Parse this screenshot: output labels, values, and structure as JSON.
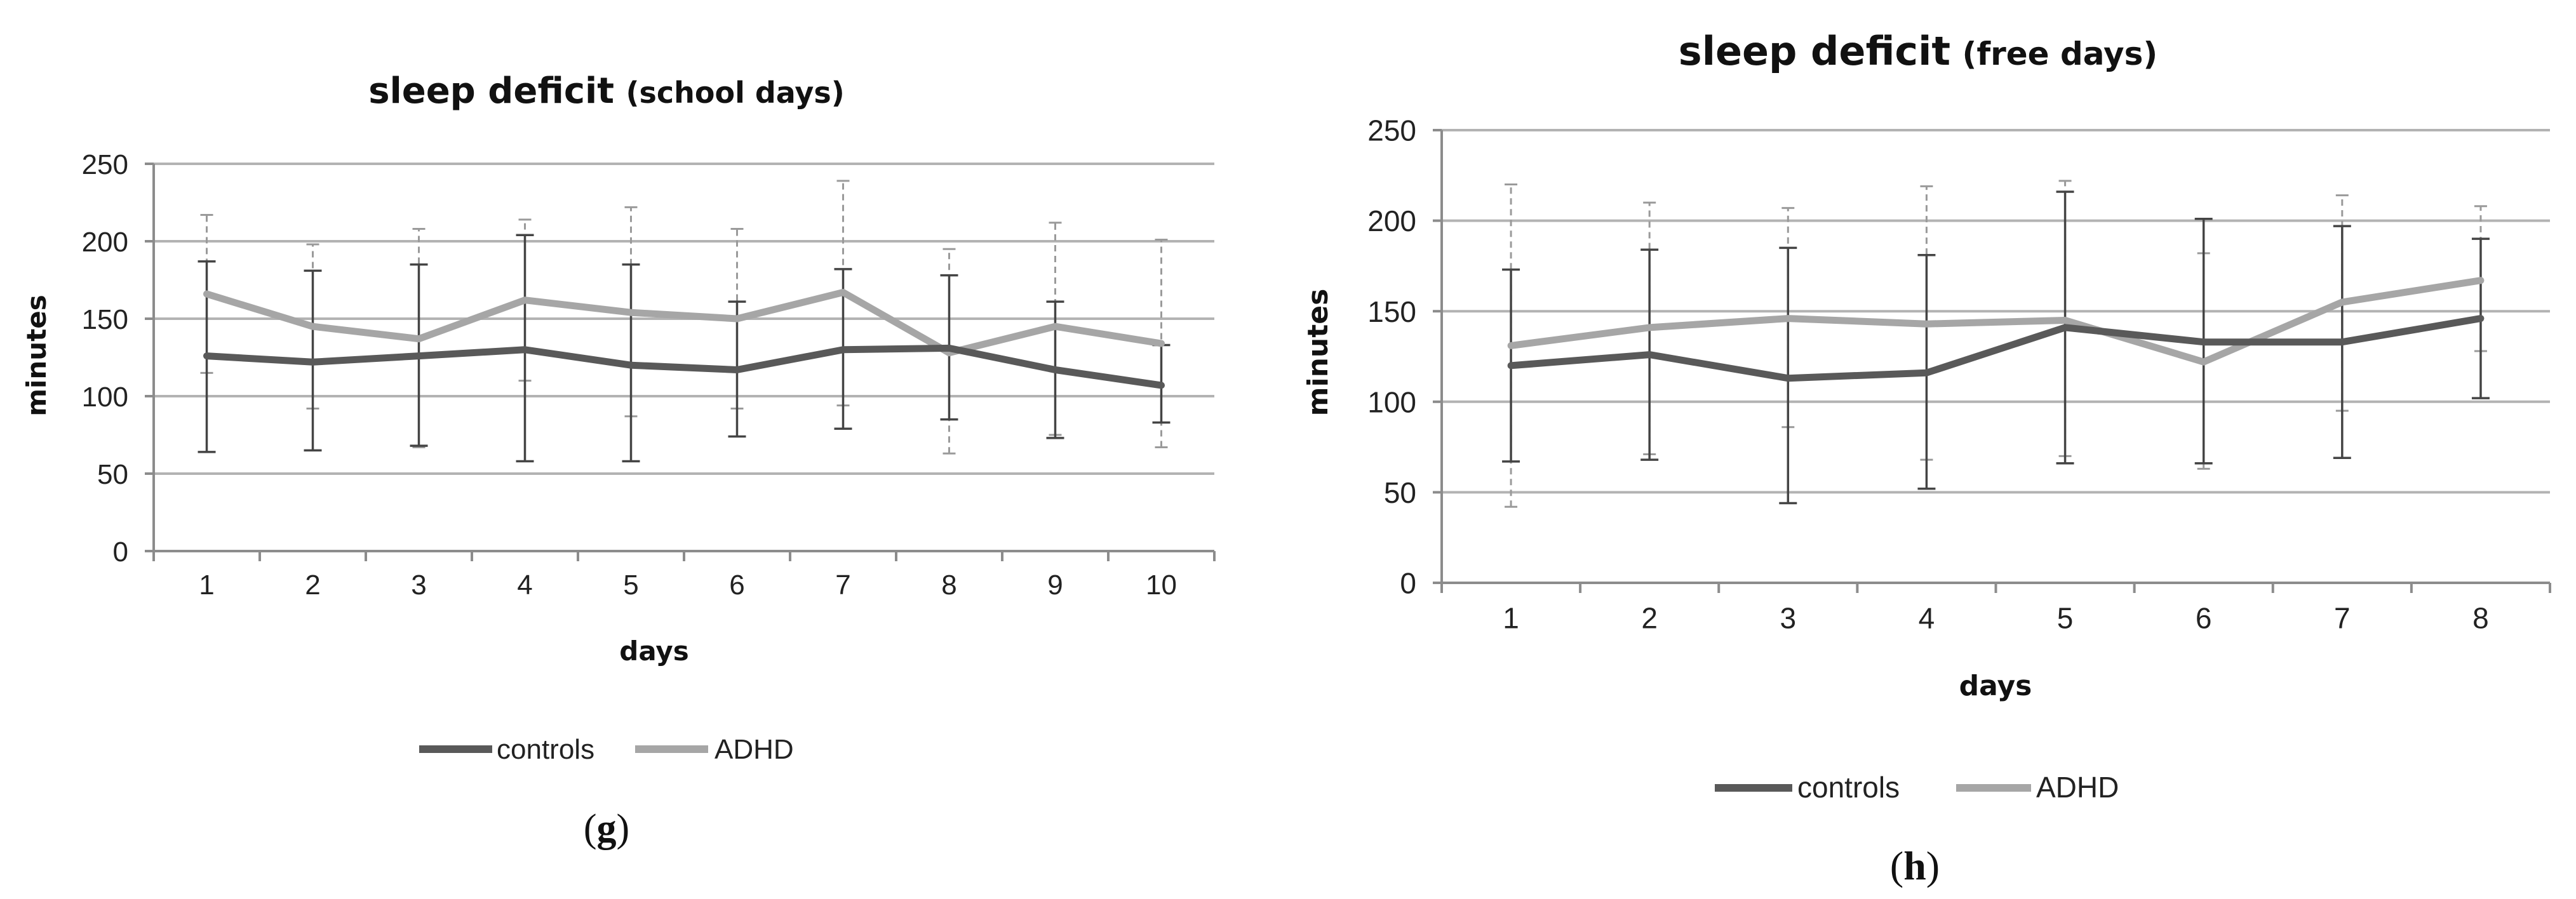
{
  "colors": {
    "controls": "#595959",
    "adhd": "#a6a6a6",
    "grid": "#b3b3b3",
    "axis": "#8c8c8c",
    "text": "#111111"
  },
  "chart_data": [
    {
      "type": "line",
      "panel_label_open": "(",
      "panel_label_letter": "g",
      "panel_label_close": ")",
      "title": "sleep deficit",
      "subtitle": "(school days)",
      "xlabel": "days",
      "ylabel": "minutes",
      "ylim": [
        0,
        250
      ],
      "yticks": [
        "0",
        "50",
        "100",
        "150",
        "200",
        "250"
      ],
      "categories": [
        "1",
        "2",
        "3",
        "4",
        "5",
        "6",
        "7",
        "8",
        "9",
        "10"
      ],
      "grid": true,
      "legend_position": "bottom",
      "series": [
        {
          "name": "controls",
          "values": [
            126,
            122,
            126,
            130,
            120,
            117,
            130,
            131,
            117,
            107
          ],
          "err_low": [
            64,
            65,
            68,
            58,
            58,
            74,
            79,
            85,
            73,
            83
          ],
          "err_high": [
            187,
            181,
            185,
            204,
            185,
            161,
            182,
            178,
            161,
            133
          ]
        },
        {
          "name": "ADHD",
          "values": [
            166,
            145,
            137,
            162,
            154,
            150,
            167,
            128,
            145,
            134
          ],
          "err_low": [
            115,
            92,
            67,
            110,
            87,
            92,
            94,
            63,
            75,
            67
          ],
          "err_high": [
            217,
            198,
            208,
            214,
            222,
            208,
            239,
            195,
            212,
            201
          ]
        }
      ]
    },
    {
      "type": "line",
      "panel_label_open": "(",
      "panel_label_letter": "h",
      "panel_label_close": ")",
      "title": "sleep deficit",
      "subtitle": "(free days)",
      "xlabel": "days",
      "ylabel": "minutes",
      "ylim": [
        0,
        250
      ],
      "yticks": [
        "0",
        "50",
        "100",
        "150",
        "200",
        "250"
      ],
      "categories": [
        "1",
        "2",
        "3",
        "4",
        "5",
        "6",
        "7",
        "8"
      ],
      "grid": true,
      "legend_position": "bottom",
      "series": [
        {
          "name": "controls",
          "values": [
            120,
            126,
            113,
            116,
            141,
            133,
            133,
            146
          ],
          "err_low": [
            67,
            68,
            44,
            52,
            66,
            66,
            69,
            102
          ],
          "err_high": [
            173,
            184,
            185,
            181,
            216,
            201,
            197,
            190
          ]
        },
        {
          "name": "ADHD",
          "values": [
            131,
            141,
            146,
            143,
            145,
            122,
            155,
            167
          ],
          "err_low": [
            42,
            71,
            86,
            68,
            70,
            63,
            95,
            128
          ],
          "err_high": [
            220,
            210,
            207,
            219,
            222,
            182,
            214,
            208
          ]
        }
      ]
    }
  ]
}
